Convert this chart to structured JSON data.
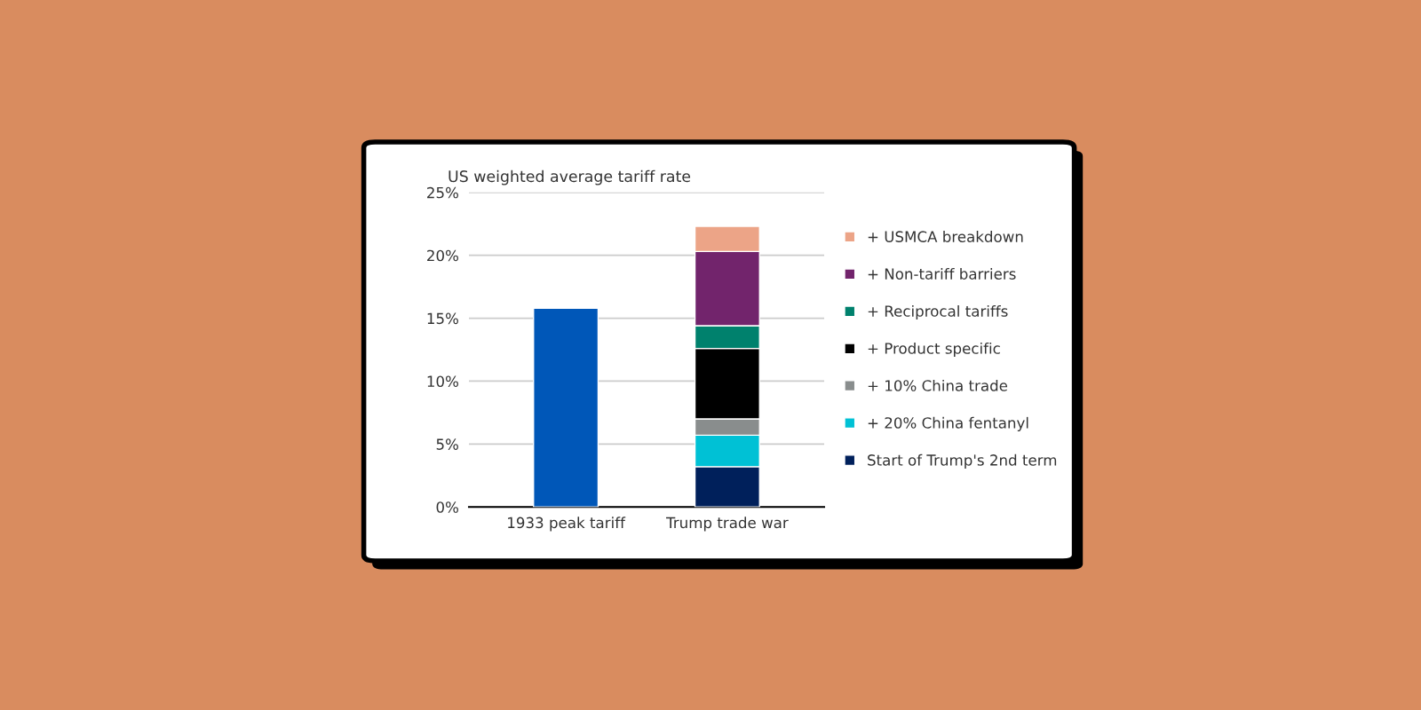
{
  "chart_data": {
    "type": "bar",
    "title": "US weighted average tariff rate",
    "categories": [
      "1933 peak tariff",
      "Trump trade war"
    ],
    "stacked": true,
    "series": [
      {
        "color": "#0057b8",
        "values": [
          15.8,
          null
        ]
      },
      {
        "name": "Start of Trump's 2nd term",
        "color": "#00205b",
        "values": [
          null,
          3.2
        ]
      },
      {
        "name": "+ 20% China fentanyl",
        "color": "#00c1d5",
        "values": [
          null,
          2.5
        ]
      },
      {
        "name": "+ 10% China trade",
        "color": "#898d8d",
        "values": [
          null,
          1.3
        ]
      },
      {
        "name": "+ Product specific",
        "color": "#000000",
        "values": [
          null,
          5.6
        ]
      },
      {
        "name": "+ Reciprocal tariffs",
        "color": "#00816d",
        "values": [
          null,
          1.8
        ]
      },
      {
        "name": "+ Non-tariff barriers",
        "color": "#72246c",
        "values": [
          null,
          5.9
        ]
      },
      {
        "name": "+ USMCA breakdown",
        "color": "#eca487",
        "values": [
          null,
          2.0
        ]
      }
    ],
    "ylim": [
      0,
      25
    ],
    "yticks": [
      {
        "value": 0,
        "label": "0%"
      },
      {
        "value": 5,
        "label": "5%"
      },
      {
        "value": 10,
        "label": "10%"
      },
      {
        "value": 15,
        "label": "15%"
      },
      {
        "value": 20,
        "label": "20%"
      },
      {
        "value": 25,
        "label": "25%"
      }
    ],
    "grid": "y",
    "legend": "right"
  }
}
